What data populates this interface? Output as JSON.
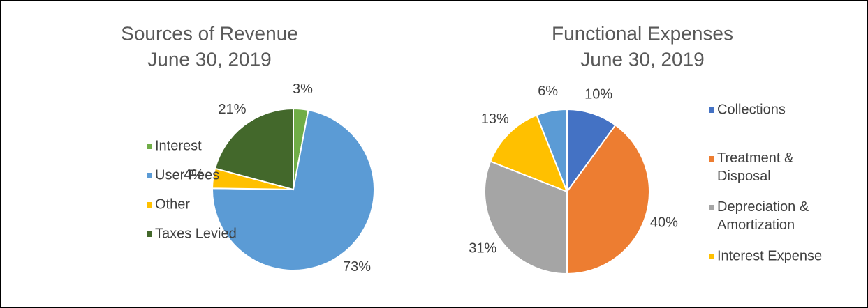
{
  "chart_data": [
    {
      "type": "pie",
      "title": "Sources of Revenue",
      "subtitle": "June 30, 2019",
      "categories": [
        "Interest",
        "User Fees",
        "Other",
        "Taxes Levied"
      ],
      "values": [
        3,
        73,
        4,
        21
      ],
      "value_labels": [
        "3%",
        "73%",
        "4%",
        "21%"
      ],
      "colors": [
        "#70ad47",
        "#5b9bd5",
        "#ffc000",
        "#43682b"
      ],
      "legend": "left"
    },
    {
      "type": "pie",
      "title": "Functional Expenses",
      "subtitle": "June 30, 2019",
      "categories": [
        "Collections",
        "Treatment & Disposal",
        "Depreciation & Amortization",
        "Interest Expense",
        null
      ],
      "values": [
        10,
        40,
        31,
        13,
        6
      ],
      "value_labels": [
        "10%",
        "40%",
        "31%",
        "13%",
        "6%"
      ],
      "colors": [
        "#4472c4",
        "#ed7d31",
        "#a5a5a5",
        "#ffc000",
        "#5b9bd5"
      ],
      "legend": "right"
    }
  ]
}
